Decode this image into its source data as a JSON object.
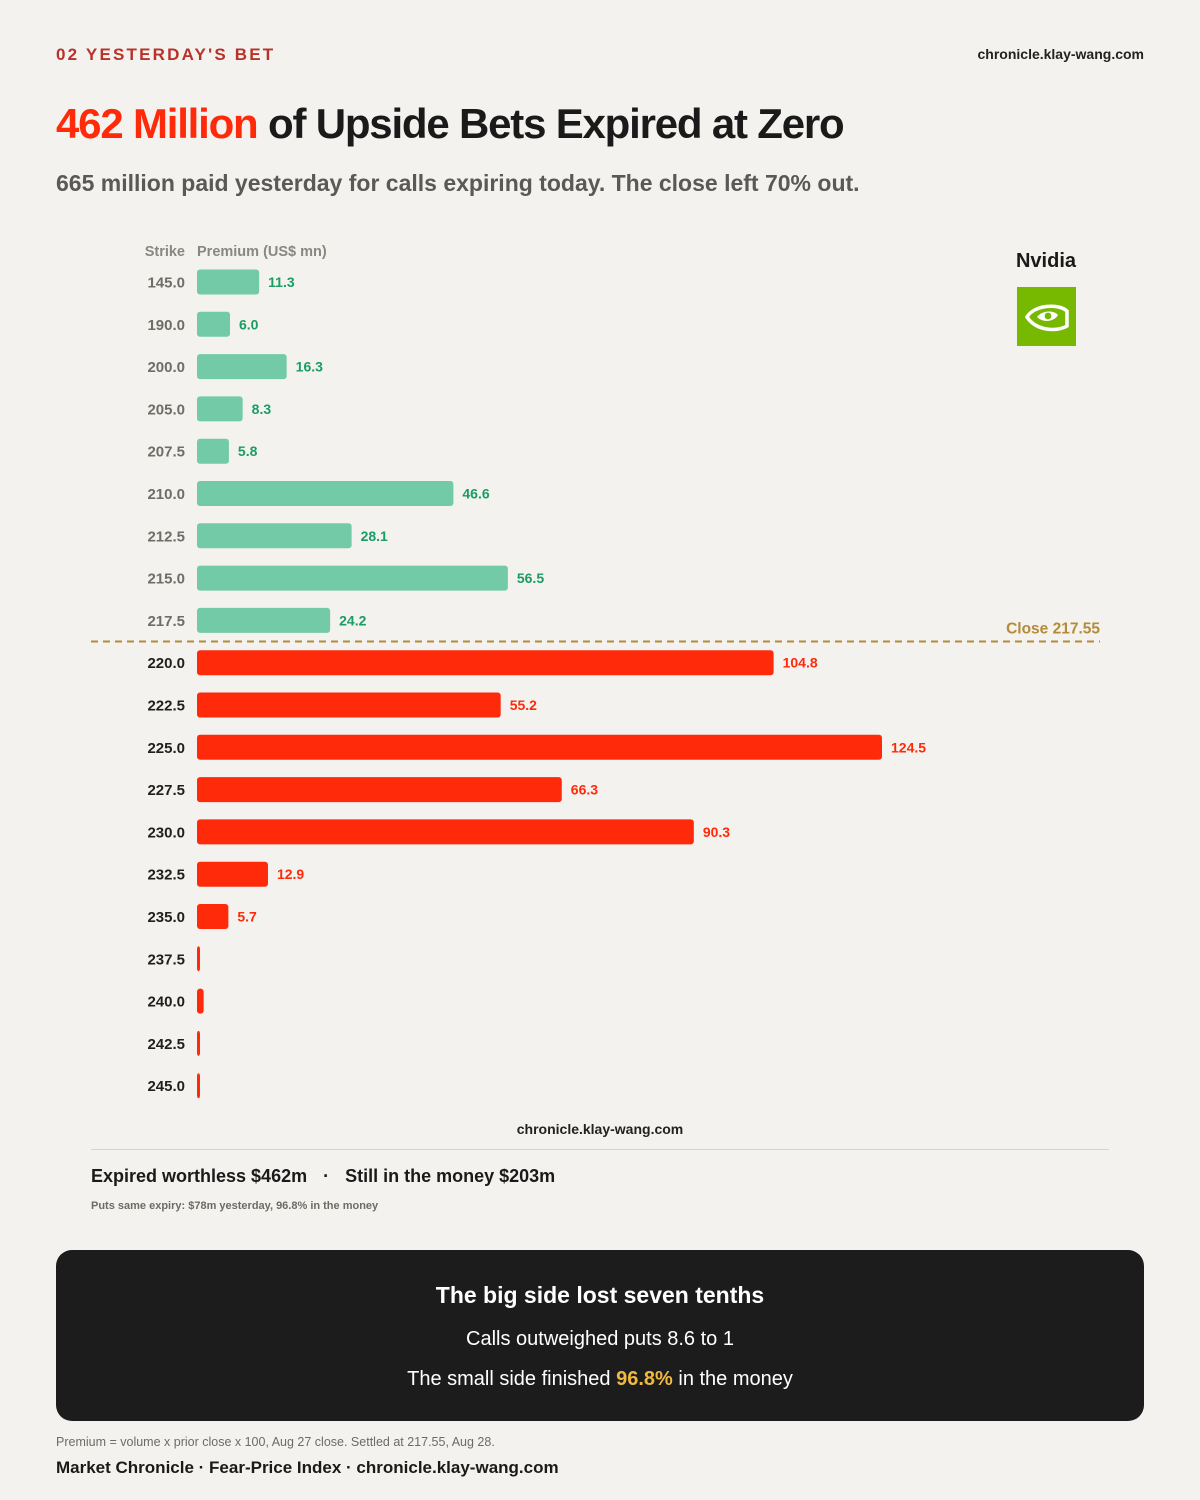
{
  "header": {
    "section": "02  YESTERDAY'S BET",
    "site": "chronicle.klay-wang.com"
  },
  "headline": {
    "highlight": "462 Million",
    "rest": " of Upside Bets Expired at Zero"
  },
  "subtitle": "665 million paid yesterday for calls expiring today. The close left 70% out.",
  "brand": {
    "name": "Nvidia",
    "logo_icon": "nvidia-eye-icon",
    "logo_color": "#76b900"
  },
  "colors": {
    "in_the_money": "#72cba6",
    "in_the_money_label": "#1a9c63",
    "worthless": "#ff2a0a",
    "close_line": "#b58a3a"
  },
  "chart_data": {
    "type": "bar",
    "orientation": "horizontal",
    "category_header": "Strike",
    "value_header": "Premium (US$ mn)",
    "categories": [
      "145.0",
      "190.0",
      "200.0",
      "205.0",
      "207.5",
      "210.0",
      "212.5",
      "215.0",
      "217.5",
      "220.0",
      "222.5",
      "225.0",
      "227.5",
      "230.0",
      "232.5",
      "235.0",
      "237.5",
      "240.0",
      "242.5",
      "245.0"
    ],
    "values": [
      11.3,
      6.0,
      16.3,
      8.3,
      5.8,
      46.6,
      28.1,
      56.5,
      24.2,
      104.8,
      55.2,
      124.5,
      66.3,
      90.3,
      12.9,
      5.7,
      0.4,
      1.2,
      0.3,
      0.3
    ],
    "value_labels": [
      "11.3",
      "6.0",
      "16.3",
      "8.3",
      "5.8",
      "46.6",
      "28.1",
      "56.5",
      "24.2",
      "104.8",
      "55.2",
      "124.5",
      "66.3",
      "90.3",
      "12.9",
      "5.7",
      "",
      "",
      "",
      ""
    ],
    "in_the_money_count": 9,
    "reference_line": {
      "label": "Close 217.55",
      "value": 217.55
    },
    "xlim": [
      0,
      124.5
    ],
    "grid": false,
    "legend": "none"
  },
  "mid_site": "chronicle.klay-wang.com",
  "summary": {
    "expired": "Expired worthless $462m",
    "separator": "·",
    "in_money": "Still in the money $203m",
    "puts_note": "Puts same expiry: $78m yesterday, 96.8% in the money"
  },
  "callout": {
    "title": "The big side lost seven tenths",
    "line1": "Calls outweighed puts 8.6 to 1",
    "line2_pre": "The small side finished ",
    "line2_accent": "96.8%",
    "line2_post": " in the money"
  },
  "methodology": "Premium = volume x prior close x 100, Aug 27 close. Settled at 217.55, Aug 28.",
  "footer": "Market Chronicle · Fear-Price Index · chronicle.klay-wang.com"
}
